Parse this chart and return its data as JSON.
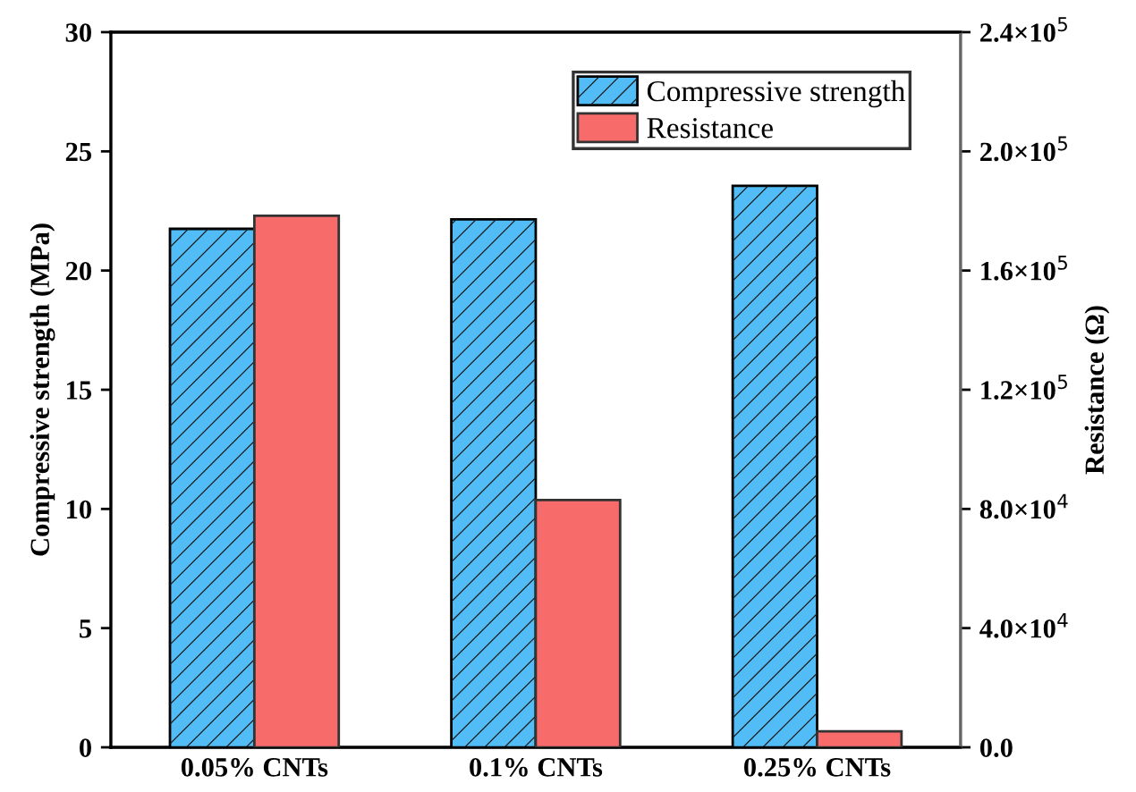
{
  "chart_data": {
    "type": "bar",
    "categories": [
      "0.05% CNTs",
      "0.1% CNTs",
      "0.25% CNTs"
    ],
    "ylabel": "Compressive strength (MPa)",
    "y2label": "Resistance (Ω)",
    "series": [
      {
        "name": "Compressive strength",
        "color": "#52bcf7",
        "values": [
          21.75,
          22.15,
          23.55
        ]
      },
      {
        "name": "Resistance",
        "color": "#f86b6b",
        "axis": "y2",
        "values": [
          178400,
          83000,
          5400
        ]
      }
    ],
    "ylim": [
      0,
      30
    ],
    "yticks": [
      0,
      5,
      10,
      15,
      20,
      25,
      30
    ],
    "y2lim": [
      0,
      240000
    ],
    "y2ticks": [
      {
        "value": 0,
        "label": "0.0"
      },
      {
        "value": 40000,
        "label": "4.0×10$^{4}$"
      },
      {
        "value": 80000,
        "label": "8.0×10$^{4}$"
      },
      {
        "value": 120000,
        "label": "1.2×10$^{5}$"
      },
      {
        "value": 160000,
        "label": "1.6×10$^{5}$"
      },
      {
        "value": 200000,
        "label": "2.0×10$^{5}$"
      },
      {
        "value": 240000,
        "label": "2.4×10$^{5}$"
      }
    ],
    "legend": "top right",
    "grid": false
  }
}
